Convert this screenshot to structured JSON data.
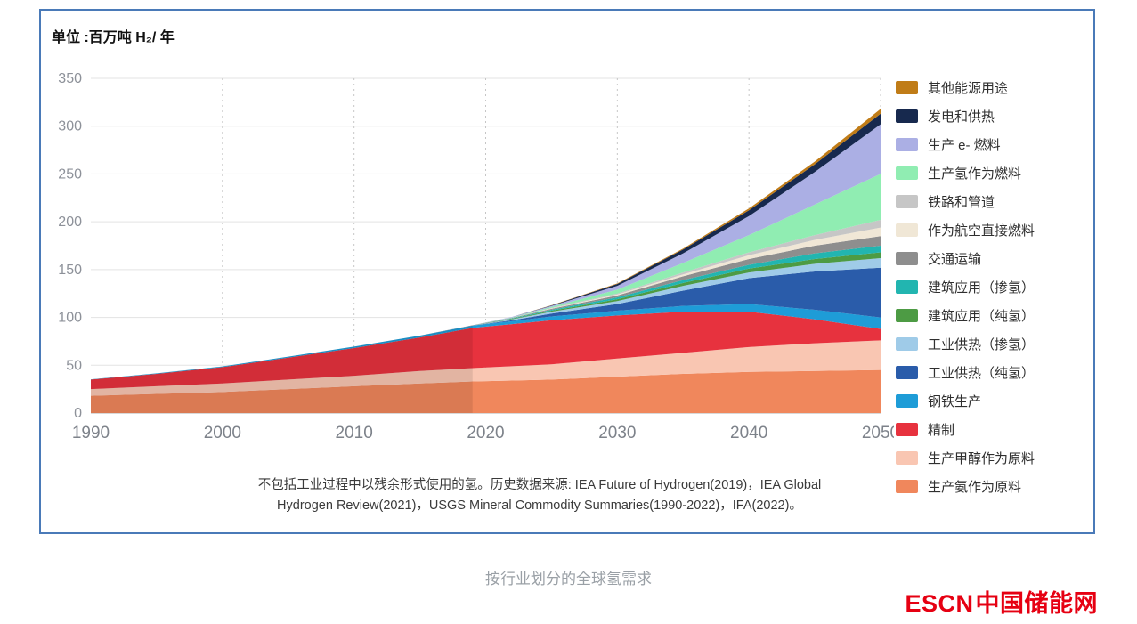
{
  "caption": "按行业划分的全球氢需求",
  "footnote": {
    "line1": "不包括工业过程中以残余形式使用的氢。历史数据来源: IEA Future of Hydrogen(2019)，IEA Global",
    "line2": "Hydrogen Review(2021)，USGS Mineral Commodity Summaries(1990-2022)，IFA(2022)。"
  },
  "logo": {
    "en": "ESCN",
    "zh": "中国储能网",
    "color": "#e60012"
  },
  "frame_border_color": "#4a7ab8",
  "chart_data": {
    "type": "area",
    "stacked": true,
    "unit_label": "单位 :百万吨 H₂/ 年",
    "xlabel": "",
    "ylabel": "",
    "xlim": [
      1990,
      2050
    ],
    "ylim": [
      0,
      350
    ],
    "x_ticks": [
      1990,
      2000,
      2010,
      2020,
      2030,
      2040,
      2050
    ],
    "y_ticks": [
      0,
      50,
      100,
      150,
      200,
      250,
      300,
      350
    ],
    "grid": true,
    "legend_position": "right",
    "history_end": 2019,
    "years": [
      1990,
      1995,
      2000,
      2005,
      2010,
      2015,
      2019,
      2022,
      2025,
      2030,
      2035,
      2040,
      2045,
      2050
    ],
    "series": [
      {
        "name": "生产氨作为原料",
        "color": "#f0875c",
        "values": [
          18,
          20,
          22,
          25,
          28,
          31,
          33,
          34,
          35,
          38,
          41,
          43,
          44,
          45
        ]
      },
      {
        "name": "生产甲醇作为原料",
        "color": "#f9c6b2",
        "values": [
          7,
          8,
          9,
          10,
          11,
          13,
          14,
          15,
          16,
          19,
          22,
          26,
          29,
          31
        ]
      },
      {
        "name": "精制",
        "color": "#e7323e",
        "values": [
          10,
          13,
          17,
          23,
          29,
          35,
          42,
          44,
          46,
          45,
          43,
          37,
          25,
          12
        ]
      },
      {
        "name": "钢铁生产",
        "color": "#1e9cd7",
        "values": [
          0.3,
          0.5,
          0.8,
          1,
          1.5,
          2,
          2.5,
          3,
          4,
          5,
          6,
          8,
          10,
          12
        ]
      },
      {
        "name": "工业供热（纯氢）",
        "color": "#2a5caa",
        "values": [
          0,
          0,
          0,
          0,
          0,
          0,
          0,
          1,
          3,
          7,
          16,
          27,
          40,
          52
        ]
      },
      {
        "name": "工业供热（掺氢）",
        "color": "#9fcbe8",
        "values": [
          0,
          0,
          0,
          0,
          0,
          0,
          0,
          1,
          2,
          3,
          5,
          6,
          8,
          10
        ]
      },
      {
        "name": "建筑应用（纯氢）",
        "color": "#4d9b44",
        "values": [
          0,
          0,
          0,
          0,
          0,
          0,
          0,
          0.5,
          1,
          2,
          3,
          4,
          5,
          6
        ]
      },
      {
        "name": "建筑应用（掺氢）",
        "color": "#22b5b0",
        "values": [
          0,
          0,
          0,
          0,
          0,
          0,
          0,
          0.5,
          1,
          2,
          3,
          4,
          6,
          7
        ]
      },
      {
        "name": "交通运输",
        "color": "#8e8e8e",
        "values": [
          0,
          0,
          0,
          0,
          0,
          0,
          0.3,
          0.5,
          1,
          2,
          4,
          6,
          8,
          10
        ]
      },
      {
        "name": "作为航空直接燃料",
        "color": "#f0e7d6",
        "values": [
          0,
          0,
          0,
          0,
          0,
          0,
          0,
          0,
          0.5,
          1,
          2,
          4,
          6,
          9
        ]
      },
      {
        "name": "铁路和管道",
        "color": "#c6c6c6",
        "values": [
          0,
          0,
          0,
          0,
          0,
          0,
          0,
          0,
          0.5,
          1,
          2,
          3,
          5,
          8
        ]
      },
      {
        "name": "生产氢作为燃料",
        "color": "#90edb2",
        "values": [
          0,
          0,
          0,
          0,
          0,
          0,
          0,
          0.5,
          1,
          4,
          10,
          18,
          32,
          48
        ]
      },
      {
        "name": "生产 e- 燃料",
        "color": "#abafe4",
        "values": [
          0,
          0,
          0,
          0,
          0,
          0,
          0,
          0.5,
          1,
          4,
          10,
          20,
          34,
          52
        ]
      },
      {
        "name": "发电和供热",
        "color": "#17294e",
        "values": [
          0,
          0,
          0,
          0,
          0,
          0,
          0,
          0,
          0.5,
          2,
          4,
          6,
          8,
          11
        ]
      },
      {
        "name": "其他能源用途",
        "color": "#c07c17",
        "values": [
          0,
          0,
          0,
          0,
          0,
          0,
          0,
          0,
          0.2,
          0.5,
          1,
          2,
          3,
          5
        ]
      }
    ]
  }
}
